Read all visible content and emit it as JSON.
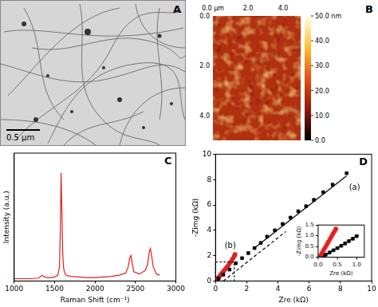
{
  "panels": {
    "A": {
      "label": "A",
      "scale_bar": "0.5 μm"
    },
    "B": {
      "label": "B",
      "x_axis": {
        "range": [
          0,
          5
        ],
        "ticks": [
          {
            "value": 0,
            "label": "0.0 μm"
          },
          {
            "value": 2,
            "label": "2.0"
          },
          {
            "value": 4,
            "label": "4.0"
          }
        ]
      },
      "y_axis": {
        "range": [
          0,
          5
        ],
        "ticks": [
          {
            "value": 0,
            "label": "0.0"
          },
          {
            "value": 2,
            "label": "2.0"
          },
          {
            "value": 4,
            "label": "4.0"
          }
        ]
      },
      "colorbar": {
        "range": [
          0,
          50
        ],
        "ticks": [
          {
            "value": 50,
            "label": "50.0 nm"
          },
          {
            "value": 40,
            "label": "40.0"
          },
          {
            "value": 30,
            "label": "30.0"
          },
          {
            "value": 20,
            "label": "20.0"
          },
          {
            "value": 10,
            "label": "10.0"
          },
          {
            "value": 0,
            "label": "0.0"
          }
        ]
      }
    }
  },
  "chart_data": [
    {
      "type": "line",
      "annotations": [
        "C"
      ],
      "x_label": "Raman Shift (cm⁻¹)",
      "y_label": "Intensity (a.u.)",
      "xlim": [
        1000,
        3000
      ],
      "xticks": [
        1000,
        1500,
        2000,
        2500,
        3000
      ],
      "ylim": [
        0,
        1.1
      ],
      "tick_labels": "x",
      "grid": false,
      "series": [
        {
          "color": "#e02020",
          "x": [
            1000,
            1100,
            1200,
            1300,
            1330,
            1345,
            1360,
            1400,
            1450,
            1500,
            1540,
            1560,
            1570,
            1580,
            1590,
            1600,
            1610,
            1620,
            1640,
            1700,
            1800,
            1900,
            2000,
            2100,
            2200,
            2300,
            2380,
            2410,
            2430,
            2445,
            2460,
            2480,
            2550,
            2620,
            2650,
            2670,
            2685,
            2700,
            2720,
            2760,
            2800
          ],
          "values": [
            0.02,
            0.02,
            0.02,
            0.025,
            0.04,
            0.05,
            0.04,
            0.03,
            0.03,
            0.035,
            0.05,
            0.12,
            0.4,
            0.93,
            0.6,
            0.25,
            0.12,
            0.08,
            0.05,
            0.04,
            0.035,
            0.03,
            0.03,
            0.035,
            0.04,
            0.05,
            0.07,
            0.12,
            0.2,
            0.22,
            0.15,
            0.08,
            0.06,
            0.09,
            0.14,
            0.25,
            0.28,
            0.22,
            0.12,
            0.06,
            0.05
          ]
        }
      ]
    },
    {
      "type": "scatter",
      "annotations": [
        "D"
      ],
      "x_label": "Zre (kΩ)",
      "y_label": "-Zimg (kΩ)",
      "xlim": [
        0,
        10
      ],
      "xticks": [
        0,
        2,
        4,
        6,
        8,
        10
      ],
      "ylim": [
        0,
        10
      ],
      "yticks": [
        0,
        2,
        4,
        6,
        8,
        10
      ],
      "grid": false,
      "series": [
        {
          "name": "(a)",
          "color": "#000000",
          "marker": "square",
          "x": [
            0.2,
            0.5,
            0.9,
            1.3,
            1.7,
            2.1,
            2.5,
            2.9,
            3.3,
            3.8,
            4.3,
            4.8,
            5.3,
            5.8,
            6.3,
            6.9,
            7.5,
            8.4
          ],
          "values": [
            0.2,
            0.5,
            0.9,
            1.4,
            1.8,
            2.2,
            2.6,
            3.0,
            3.5,
            4.0,
            4.5,
            5.0,
            5.5,
            5.9,
            6.4,
            7.0,
            7.6,
            8.5
          ]
        },
        {
          "name": "(b)",
          "color": "#e02020",
          "marker": "circle",
          "x": [
            0.05,
            0.1,
            0.15,
            0.2,
            0.3,
            0.4,
            0.5,
            0.6,
            0.7,
            0.8,
            0.9,
            1.0,
            1.1,
            1.2,
            1.25
          ],
          "values": [
            0.0,
            0.1,
            0.2,
            0.3,
            0.45,
            0.6,
            0.75,
            0.9,
            1.05,
            1.2,
            1.4,
            1.55,
            1.75,
            1.95,
            2.1
          ]
        },
        {
          "color": "#000000",
          "marker": "none",
          "line_style": "solid",
          "x": [
            2.5,
            8.4
          ],
          "values": [
            2.6,
            8.3
          ]
        },
        {
          "color": "#000000",
          "marker": "none",
          "line_style": "dashed",
          "x": [
            0.5,
            4.5
          ],
          "values": [
            0,
            3.9
          ]
        },
        {
          "color": "#e02020",
          "marker": "none",
          "line_style": "solid",
          "x": [
            0.1,
            1.3
          ],
          "values": [
            0.1,
            2.2
          ]
        }
      ],
      "inset": {
        "type": "scatter",
        "x_label": "Zre (kΩ)",
        "y_label": "-Zimg (kΩ)",
        "xlim": [
          0,
          1.2
        ],
        "xticks": [
          {
            "value": 0,
            "label": "0.0"
          },
          0.5,
          {
            "value": 1,
            "label": "1.0"
          }
        ],
        "ylim": [
          0,
          1.5
        ],
        "yticks": [
          {
            "value": 0,
            "label": "0.0"
          },
          0.5,
          {
            "value": 1,
            "label": "1.0"
          },
          1.5
        ],
        "grid": false,
        "series": [
          {
            "color": "#e02020",
            "marker": "circle",
            "x": [
              0.03,
              0.06,
              0.09,
              0.12,
              0.15,
              0.19,
              0.23,
              0.27,
              0.31,
              0.35,
              0.39,
              0.43,
              0.46
            ],
            "values": [
              0.0,
              0.05,
              0.15,
              0.25,
              0.35,
              0.47,
              0.6,
              0.72,
              0.85,
              0.97,
              1.1,
              1.22,
              1.32
            ]
          },
          {
            "color": "#000000",
            "marker": "square",
            "x": [
              0.1,
              0.15,
              0.2,
              0.3,
              0.4,
              0.5,
              0.6,
              0.7,
              0.8,
              0.9,
              1.0
            ],
            "values": [
              0.0,
              0.06,
              0.12,
              0.22,
              0.32,
              0.42,
              0.53,
              0.64,
              0.75,
              0.86,
              0.98
            ]
          },
          {
            "color": "#e02020",
            "marker": "none",
            "line_style": "solid",
            "x": [
              0.05,
              0.48
            ],
            "values": [
              0.0,
              1.4
            ]
          },
          {
            "color": "#000000",
            "marker": "none",
            "line_style": "solid",
            "x": [
              0.1,
              1.05
            ],
            "values": [
              0.0,
              1.04
            ]
          }
        ]
      }
    }
  ]
}
